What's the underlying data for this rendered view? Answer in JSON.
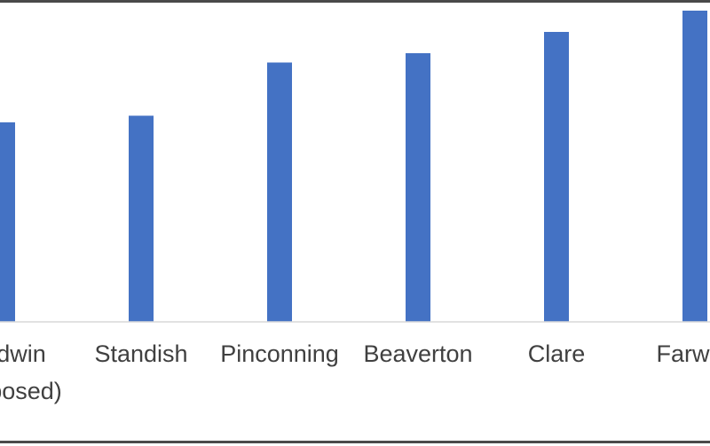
{
  "chart_data": {
    "type": "bar",
    "categories": [
      [
        "Gladwin",
        "(Proposed)"
      ],
      [
        "Standish"
      ],
      [
        "Pinconning"
      ],
      [
        "Beaverton"
      ],
      [
        "Clare"
      ],
      [
        "Farwell"
      ]
    ],
    "series": [
      {
        "values": [
          150,
          155,
          195,
          202,
          218,
          234
        ],
        "color": "#4472c4"
      }
    ],
    "ylim": [
      0,
      240
    ],
    "grid": false,
    "legend": "none",
    "title": "",
    "xlabel": "",
    "ylabel": ""
  }
}
